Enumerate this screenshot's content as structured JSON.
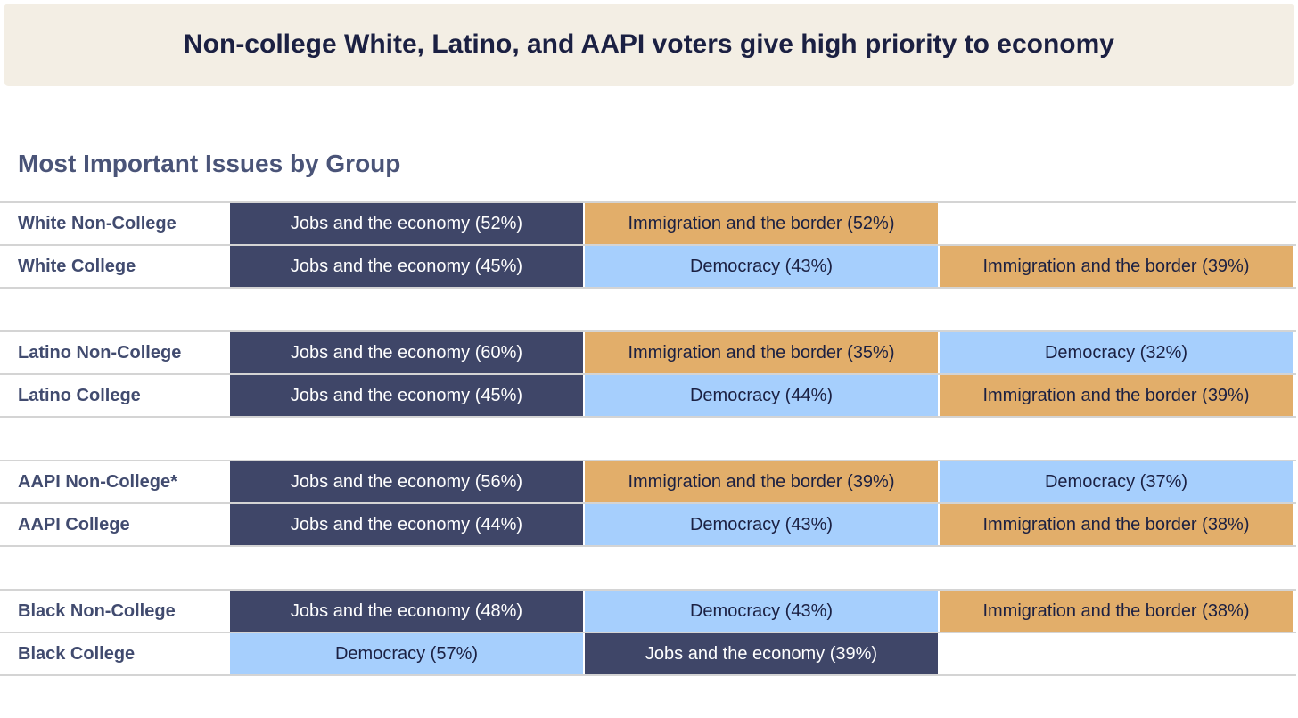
{
  "title": "Non-college White, Latino, and AAPI voters give high priority to economy",
  "subtitle": "Most Important Issues by Group",
  "colors": {
    "Jobs and the economy": "#3f4668",
    "Immigration and the border": "#e2ae6a",
    "Democracy": "#a6cffd"
  },
  "text_colors": {
    "Jobs and the economy": "#ffffff",
    "Immigration and the border": "#1b2042",
    "Democracy": "#1b2042"
  },
  "chart_data": {
    "type": "table",
    "title": "Most Important Issues by Group",
    "groups": [
      {
        "rows": [
          {
            "group": "White Non-College",
            "issues": [
              {
                "label": "Jobs and the economy (52%)",
                "issue": "Jobs and the economy",
                "value": 52
              },
              {
                "label": "Immigration and the border (52%)",
                "issue": "Immigration and the border",
                "value": 52
              }
            ]
          },
          {
            "group": "White College",
            "issues": [
              {
                "label": "Jobs and the economy (45%)",
                "issue": "Jobs and the economy",
                "value": 45
              },
              {
                "label": "Democracy (43%)",
                "issue": "Democracy",
                "value": 43
              },
              {
                "label": "Immigration and the border (39%)",
                "issue": "Immigration and the border",
                "value": 39
              }
            ]
          }
        ]
      },
      {
        "rows": [
          {
            "group": "Latino Non-College",
            "issues": [
              {
                "label": "Jobs and the economy (60%)",
                "issue": "Jobs and the economy",
                "value": 60
              },
              {
                "label": "Immigration and the border (35%)",
                "issue": "Immigration and the border",
                "value": 35
              },
              {
                "label": "Democracy (32%)",
                "issue": "Democracy",
                "value": 32
              }
            ]
          },
          {
            "group": "Latino College",
            "issues": [
              {
                "label": "Jobs and the economy (45%)",
                "issue": "Jobs and the economy",
                "value": 45
              },
              {
                "label": "Democracy (44%)",
                "issue": "Democracy",
                "value": 44
              },
              {
                "label": "Immigration and the border (39%)",
                "issue": "Immigration and the border",
                "value": 39
              }
            ]
          }
        ]
      },
      {
        "rows": [
          {
            "group": "AAPI Non-College*",
            "issues": [
              {
                "label": "Jobs and the economy (56%)",
                "issue": "Jobs and the economy",
                "value": 56
              },
              {
                "label": "Immigration and the border (39%)",
                "issue": "Immigration and the border",
                "value": 39
              },
              {
                "label": "Democracy (37%)",
                "issue": "Democracy",
                "value": 37
              }
            ]
          },
          {
            "group": "AAPI College",
            "issues": [
              {
                "label": "Jobs and the economy (44%)",
                "issue": "Jobs and the economy",
                "value": 44
              },
              {
                "label": "Democracy (43%)",
                "issue": "Democracy",
                "value": 43
              },
              {
                "label": "Immigration and the border (38%)",
                "issue": "Immigration and the border",
                "value": 38
              }
            ]
          }
        ]
      },
      {
        "rows": [
          {
            "group": "Black Non-College",
            "issues": [
              {
                "label": "Jobs and the economy (48%)",
                "issue": "Jobs and the economy",
                "value": 48
              },
              {
                "label": "Democracy (43%)",
                "issue": "Democracy",
                "value": 43
              },
              {
                "label": "Immigration and the border (38%)",
                "issue": "Immigration and the border",
                "value": 38
              }
            ]
          },
          {
            "group": "Black College",
            "issues": [
              {
                "label": "Democracy (57%)",
                "issue": "Democracy",
                "value": 57
              },
              {
                "label": "Jobs and the economy (39%)",
                "issue": "Jobs and the economy",
                "value": 39
              }
            ]
          }
        ]
      }
    ]
  }
}
